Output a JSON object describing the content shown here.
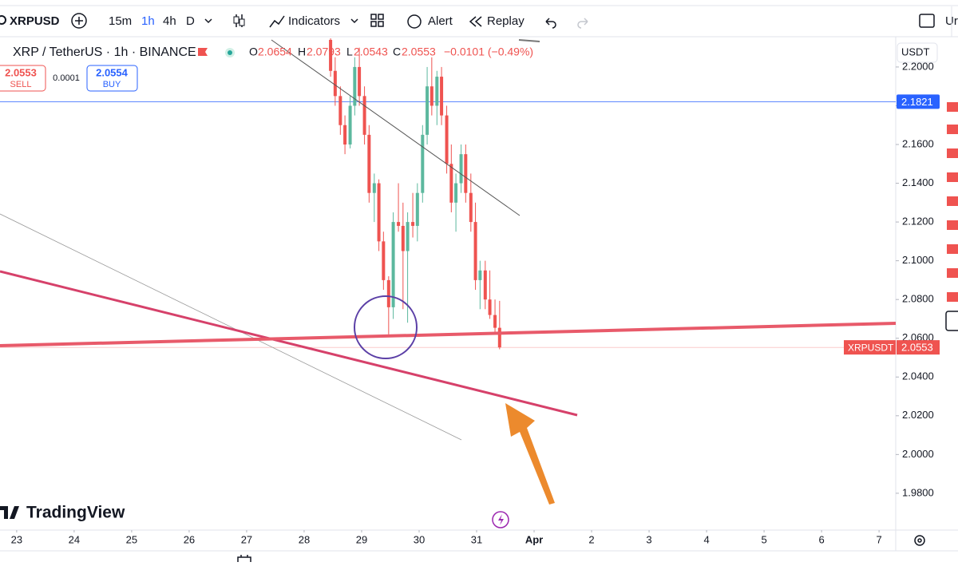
{
  "toolbar": {
    "symbol": "XRPUSD",
    "intervals": [
      "15m",
      "1h",
      "4h",
      "D"
    ],
    "indicators": "Indicators",
    "alert": "Alert",
    "replay": "Replay",
    "cut": "Ur"
  },
  "legend": {
    "title": "XRP / TetherUS · 1h · BINANCE",
    "open_label": "O",
    "open": "2.0654",
    "high_label": "H",
    "high": "2.0793",
    "low_label": "L",
    "low": "2.0543",
    "close_label": "C",
    "close": "2.0553",
    "change": "−0.0101 (−0.49%)"
  },
  "trade": {
    "sell_price": "2.0553",
    "sell": "SELL",
    "spread": "0.0001",
    "buy_price": "2.0554",
    "buy": "BUY"
  },
  "logo": "TradingView",
  "chart_data": {
    "type": "candlestick",
    "currency": "USDT",
    "x": [
      28.46,
      28.54,
      28.63,
      28.71,
      28.8,
      28.88,
      28.96,
      29.05,
      29.13,
      29.22,
      29.3,
      29.38,
      29.47,
      29.55,
      29.64,
      29.72,
      29.8,
      29.89,
      29.97,
      30.06,
      30.14,
      30.22,
      30.31,
      30.39,
      30.48,
      30.56,
      30.64,
      30.73,
      30.81,
      30.9,
      30.98,
      31.06,
      31.15,
      31.23,
      31.32,
      31.4
    ],
    "open": [
      2.214,
      2.198,
      2.185,
      2.17,
      2.16,
      2.18,
      2.2,
      2.185,
      2.165,
      2.135,
      2.14,
      2.11,
      2.09,
      2.076,
      2.12,
      2.118,
      2.105,
      2.12,
      2.118,
      2.135,
      2.165,
      2.19,
      2.18,
      2.195,
      2.175,
      2.15,
      2.13,
      2.14,
      2.155,
      2.135,
      2.12,
      2.09,
      2.095,
      2.08,
      2.072,
      2.0654
    ],
    "high": [
      2.2148,
      2.205,
      2.19,
      2.175,
      2.185,
      2.205,
      2.21,
      2.19,
      2.17,
      2.145,
      2.142,
      2.115,
      2.092,
      2.125,
      2.14,
      2.13,
      2.125,
      2.135,
      2.14,
      2.17,
      2.2,
      2.205,
      2.198,
      2.2,
      2.18,
      2.16,
      2.145,
      2.16,
      2.16,
      2.145,
      2.13,
      2.1,
      2.1,
      2.095,
      2.08,
      2.0793
    ],
    "low": [
      2.195,
      2.18,
      2.165,
      2.155,
      2.158,
      2.175,
      2.18,
      2.16,
      2.13,
      2.12,
      2.105,
      2.085,
      2.062,
      2.07,
      2.115,
      2.075,
      2.068,
      2.112,
      2.11,
      2.13,
      2.16,
      2.175,
      2.17,
      2.17,
      2.145,
      2.125,
      2.115,
      2.135,
      2.13,
      2.115,
      2.085,
      2.075,
      2.075,
      2.07,
      2.062,
      2.0543
    ],
    "close": [
      2.198,
      2.185,
      2.17,
      2.16,
      2.18,
      2.2,
      2.185,
      2.165,
      2.135,
      2.14,
      2.11,
      2.09,
      2.076,
      2.12,
      2.118,
      2.105,
      2.12,
      2.118,
      2.135,
      2.165,
      2.19,
      2.18,
      2.195,
      2.175,
      2.15,
      2.13,
      2.14,
      2.155,
      2.135,
      2.12,
      2.09,
      2.095,
      2.08,
      2.072,
      2.0654,
      2.0553
    ],
    "up_color": "#5cb89e",
    "down_color": "#ef5350",
    "xlim": [
      22.71,
      38.29
    ],
    "xticks": [
      23,
      24,
      25,
      26,
      27,
      28,
      29,
      30,
      31,
      {
        "value": 32,
        "label": "Apr"
      },
      {
        "value": 33,
        "label": "2"
      },
      {
        "value": 34,
        "label": "3"
      },
      {
        "value": 35,
        "label": "4"
      },
      {
        "value": 36,
        "label": "5"
      },
      {
        "value": 37,
        "label": "6"
      },
      {
        "value": 38,
        "label": "7"
      }
    ],
    "ylim": [
      1.961,
      2.2148
    ],
    "yticks": [
      {
        "value": 2.2,
        "label": "2.2000"
      },
      {
        "value": 2.18,
        "label": "2.1800"
      },
      {
        "value": 2.16,
        "label": "2.1600"
      },
      {
        "value": 2.14,
        "label": "2.1400"
      },
      {
        "value": 2.12,
        "label": "2.1200"
      },
      {
        "value": 2.1,
        "label": "2.1000"
      },
      {
        "value": 2.08,
        "label": "2.0800"
      },
      {
        "value": 2.06,
        "label": "2.0600"
      },
      {
        "value": 2.04,
        "label": "2.0400"
      },
      {
        "value": 2.02,
        "label": "2.0200"
      },
      {
        "value": 2.0,
        "label": "2.0000"
      },
      {
        "value": 1.98,
        "label": "1.9800"
      }
    ],
    "price_line": {
      "value": 2.1821,
      "color": "#2962ff"
    },
    "last_price": {
      "name": "XRPUSDT",
      "value": 2.0553,
      "color": "#ef5350"
    }
  }
}
